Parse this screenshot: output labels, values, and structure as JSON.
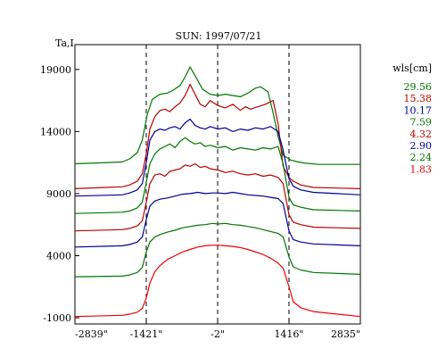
{
  "chart_data": {
    "type": "line",
    "title": "SUN: 1997/07/21",
    "ylabel": "Ta,I",
    "xlabel": "",
    "xlim": [
      -2839,
      2835
    ],
    "ylim": [
      -1500,
      21000
    ],
    "x_ticks": [
      {
        "value": -2839,
        "label": "-2839\""
      },
      {
        "value": -1421,
        "label": "-1421\""
      },
      {
        "value": -2,
        "label": "-2\""
      },
      {
        "value": 1416,
        "label": "1416\""
      },
      {
        "value": 2835,
        "label": "2835\""
      }
    ],
    "y_ticks": [
      {
        "value": 19000,
        "label": "19000"
      },
      {
        "value": 14000,
        "label": "14000"
      },
      {
        "value": 9000,
        "label": "9000"
      },
      {
        "value": 4000,
        "label": "4000"
      },
      {
        "value": -1000,
        "label": "-1000"
      }
    ],
    "vlines": [
      -1421,
      -2,
      1416
    ],
    "grid": false,
    "legend": {
      "title": "wls[cm]",
      "position": "right"
    },
    "series": [
      {
        "name": "29.56",
        "color": "#007700",
        "x": [
          -2839,
          -1900,
          -1750,
          -1600,
          -1500,
          -1400,
          -1300,
          -1150,
          -1000,
          -900,
          -750,
          -650,
          -550,
          -450,
          -300,
          -150,
          0,
          150,
          300,
          450,
          600,
          750,
          850,
          1000,
          1100,
          1200,
          1300,
          1450,
          1600,
          1750,
          2000,
          2835
        ],
        "y": [
          11400,
          11550,
          11800,
          12300,
          13300,
          15400,
          16600,
          17000,
          17100,
          17300,
          17700,
          18400,
          19200,
          18500,
          17400,
          17000,
          16900,
          17000,
          16900,
          16800,
          17100,
          17500,
          17600,
          17200,
          15500,
          13600,
          12100,
          11700,
          11550,
          11450,
          11350,
          11350
        ]
      },
      {
        "name": "15.38",
        "color": "#bb0000",
        "x": [
          -2839,
          -1900,
          -1750,
          -1600,
          -1500,
          -1420,
          -1350,
          -1250,
          -1150,
          -1050,
          -950,
          -850,
          -750,
          -650,
          -550,
          -450,
          -350,
          -250,
          -150,
          0,
          150,
          300,
          450,
          550,
          650,
          800,
          950,
          1100,
          1200,
          1300,
          1416,
          1500,
          1650,
          1900,
          2835
        ],
        "y": [
          9400,
          9550,
          9700,
          10000,
          10600,
          12200,
          14200,
          15200,
          15700,
          15800,
          15600,
          16000,
          16300,
          16900,
          17800,
          17000,
          16200,
          16000,
          16500,
          16100,
          15900,
          16200,
          15700,
          16000,
          15800,
          16000,
          16200,
          16500,
          14600,
          11200,
          10300,
          10000,
          9700,
          9500,
          9400
        ]
      },
      {
        "name": "10.17",
        "color": "#000099",
        "x": [
          -2839,
          -1900,
          -1750,
          -1600,
          -1500,
          -1420,
          -1350,
          -1250,
          -1150,
          -1050,
          -950,
          -850,
          -750,
          -650,
          -550,
          -450,
          -350,
          -250,
          -150,
          0,
          150,
          300,
          450,
          600,
          750,
          900,
          1050,
          1200,
          1300,
          1416,
          1500,
          1650,
          1900,
          2835
        ],
        "y": [
          8800,
          8900,
          9050,
          9300,
          9800,
          11500,
          13300,
          14000,
          14200,
          14100,
          14300,
          14400,
          14200,
          14700,
          15000,
          14500,
          14300,
          14200,
          14400,
          14200,
          14300,
          14000,
          14200,
          14100,
          14300,
          14200,
          14400,
          14000,
          12500,
          10200,
          9600,
          9300,
          9100,
          8900
        ]
      },
      {
        "name": "7.59",
        "color": "#007700",
        "x": [
          -2839,
          -1900,
          -1750,
          -1600,
          -1500,
          -1420,
          -1350,
          -1250,
          -1150,
          -1050,
          -950,
          -850,
          -750,
          -650,
          -550,
          -450,
          -350,
          -250,
          -150,
          0,
          150,
          300,
          450,
          600,
          750,
          900,
          1050,
          1200,
          1300,
          1416,
          1500,
          1650,
          1900,
          2835
        ],
        "y": [
          7400,
          7500,
          7600,
          7850,
          8300,
          9900,
          11400,
          12200,
          12600,
          12800,
          13000,
          12700,
          13200,
          13500,
          13200,
          13000,
          13100,
          12800,
          12900,
          12700,
          12800,
          12500,
          12700,
          12600,
          12500,
          12700,
          12600,
          12800,
          11400,
          8700,
          8100,
          7900,
          7700,
          7600
        ]
      },
      {
        "name": "4.32",
        "color": "#bb0000",
        "x": [
          -2839,
          -1900,
          -1750,
          -1600,
          -1500,
          -1420,
          -1350,
          -1250,
          -1150,
          -1050,
          -950,
          -850,
          -750,
          -650,
          -550,
          -450,
          -350,
          -250,
          -150,
          0,
          150,
          300,
          450,
          600,
          750,
          900,
          1050,
          1200,
          1300,
          1416,
          1500,
          1650,
          1900,
          2835
        ],
        "y": [
          6000,
          6100,
          6200,
          6400,
          6800,
          8300,
          9800,
          10500,
          10600,
          10400,
          10800,
          10900,
          11000,
          11300,
          11200,
          11400,
          11100,
          11200,
          11000,
          10900,
          10700,
          10800,
          10600,
          10500,
          10600,
          10400,
          10500,
          10300,
          9800,
          7300,
          6700,
          6500,
          6300,
          6200
        ]
      },
      {
        "name": "2.90",
        "color": "#000099",
        "x": [
          -2839,
          -1900,
          -1750,
          -1600,
          -1500,
          -1420,
          -1350,
          -1250,
          -1150,
          -1000,
          -850,
          -700,
          -550,
          -400,
          -250,
          -100,
          0,
          150,
          300,
          450,
          600,
          750,
          900,
          1050,
          1200,
          1300,
          1416,
          1500,
          1650,
          1900,
          2835
        ],
        "y": [
          4700,
          4800,
          4900,
          5100,
          5500,
          6900,
          8000,
          8400,
          8550,
          8650,
          8800,
          8950,
          9000,
          9100,
          9000,
          9050,
          9050,
          9000,
          9100,
          9000,
          8900,
          8850,
          8800,
          8700,
          8600,
          8200,
          6000,
          5300,
          5100,
          4950,
          4800
        ]
      },
      {
        "name": "2.24",
        "color": "#007700",
        "x": [
          -2839,
          -1900,
          -1750,
          -1600,
          -1500,
          -1420,
          -1350,
          -1250,
          -1150,
          -1000,
          -850,
          -700,
          -550,
          -400,
          -250,
          -100,
          0,
          150,
          300,
          450,
          600,
          750,
          900,
          1050,
          1200,
          1300,
          1416,
          1500,
          1650,
          1900,
          2835
        ],
        "y": [
          2300,
          2350,
          2450,
          2650,
          3050,
          4300,
          5100,
          5500,
          5700,
          5900,
          6050,
          6250,
          6350,
          6450,
          6500,
          6600,
          6550,
          6600,
          6500,
          6450,
          6350,
          6250,
          6100,
          5950,
          5800,
          5500,
          3900,
          3100,
          2850,
          2650,
          2500
        ]
      },
      {
        "name": "1.83",
        "color": "#ee0000",
        "x": [
          -2839,
          -1900,
          -1750,
          -1600,
          -1500,
          -1420,
          -1350,
          -1250,
          -1150,
          -1000,
          -850,
          -700,
          -550,
          -400,
          -250,
          -100,
          0,
          150,
          300,
          450,
          600,
          750,
          900,
          1050,
          1200,
          1300,
          1416,
          1500,
          1650,
          1900,
          2835
        ],
        "y": [
          -900,
          -800,
          -700,
          -550,
          -250,
          600,
          1800,
          2700,
          3200,
          3700,
          4000,
          4300,
          4500,
          4700,
          4800,
          4850,
          4850,
          4800,
          4750,
          4650,
          4500,
          4300,
          4100,
          3800,
          3400,
          3000,
          1500,
          300,
          -200,
          -500,
          -900
        ]
      }
    ]
  }
}
